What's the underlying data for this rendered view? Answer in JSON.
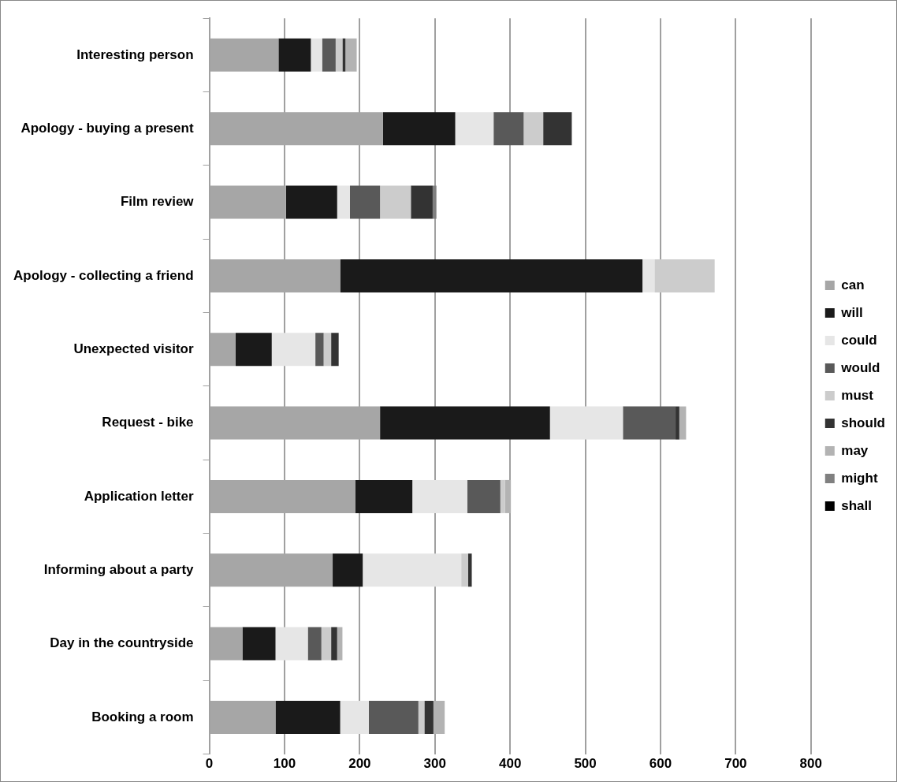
{
  "chart_data": {
    "type": "bar",
    "orientation": "horizontal",
    "stacked": true,
    "categories": [
      "Interesting person",
      "Apology - buying a present",
      "Film review",
      "Apology - collecting a friend",
      "Unexpected visitor",
      "Request - bike",
      "Application letter",
      "Informing about a party",
      "Day in the countryside",
      "Booking a room"
    ],
    "series": [
      {
        "name": "can",
        "color": "#a6a6a6",
        "values": [
          92,
          231,
          102,
          174,
          35,
          227,
          194,
          164,
          44,
          88
        ]
      },
      {
        "name": "will",
        "color": "#1a1a1a",
        "values": [
          43,
          96,
          68,
          402,
          48,
          226,
          76,
          40,
          44,
          86
        ]
      },
      {
        "name": "could",
        "color": "#e6e6e6",
        "values": [
          15,
          51,
          17,
          16,
          58,
          97,
          73,
          131,
          43,
          38
        ]
      },
      {
        "name": "would",
        "color": "#595959",
        "values": [
          18,
          40,
          40,
          0,
          11,
          70,
          44,
          0,
          18,
          66
        ]
      },
      {
        "name": "must",
        "color": "#cccccc",
        "values": [
          9,
          26,
          41,
          80,
          10,
          0,
          6,
          9,
          13,
          8
        ]
      },
      {
        "name": "should",
        "color": "#333333",
        "values": [
          4,
          38,
          29,
          0,
          10,
          5,
          0,
          5,
          8,
          12
        ]
      },
      {
        "name": "may",
        "color": "#b3b3b3",
        "values": [
          15,
          0,
          0,
          0,
          0,
          9,
          8,
          0,
          7,
          15
        ]
      },
      {
        "name": "might",
        "color": "#808080",
        "values": [
          0,
          0,
          5,
          0,
          0,
          0,
          0,
          0,
          0,
          0
        ]
      },
      {
        "name": "shall",
        "color": "#000000",
        "values": [
          0,
          0,
          0,
          0,
          0,
          0,
          0,
          0,
          0,
          0
        ]
      }
    ],
    "xlim": [
      0,
      800
    ],
    "xticks": [
      0,
      100,
      200,
      300,
      400,
      500,
      600,
      700,
      800
    ],
    "grid": "x",
    "legend": "right"
  }
}
